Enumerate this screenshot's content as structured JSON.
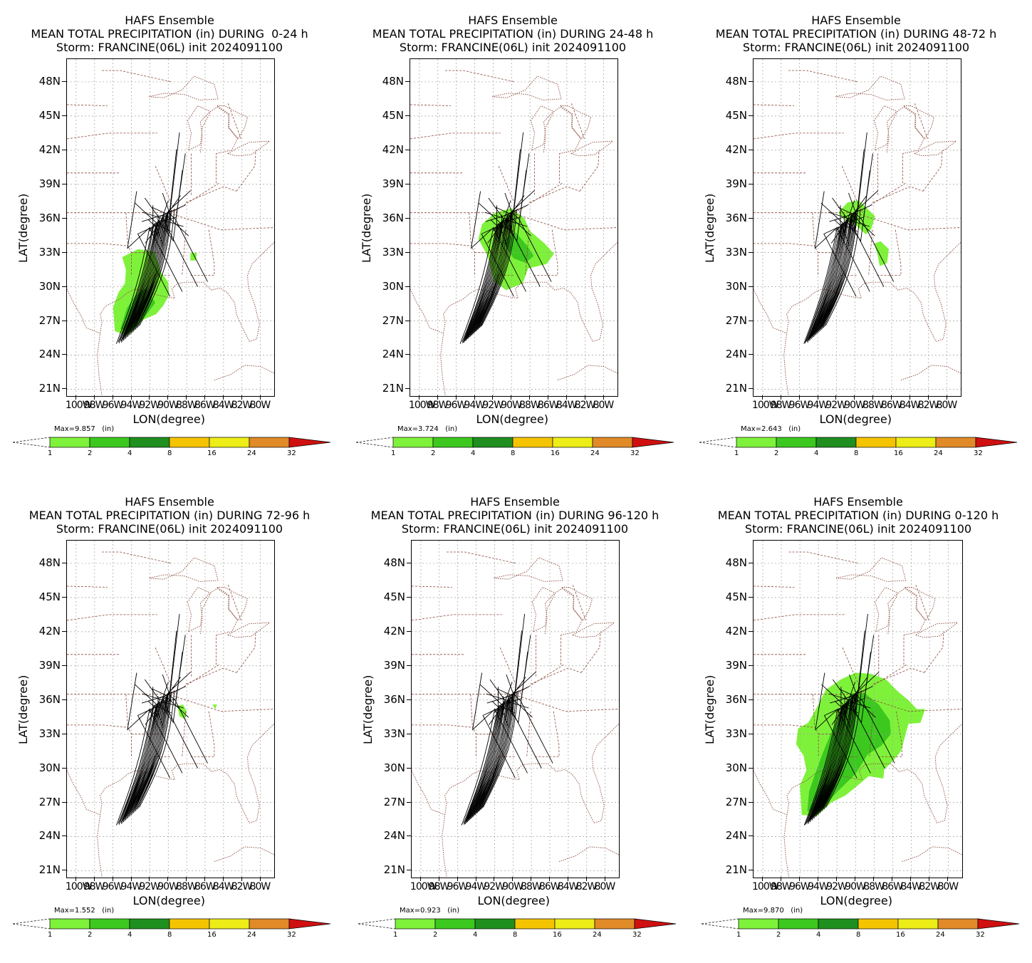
{
  "figure": {
    "colorbar": {
      "levels": [
        "1",
        "2",
        "4",
        "8",
        "16",
        "24",
        "32"
      ],
      "colors": [
        "#7ef23a",
        "#3cc81e",
        "#1f8f1f",
        "#f5c400",
        "#eded18",
        "#e08a28",
        "#d01010"
      ],
      "unit": "(in)"
    },
    "lat_ticks": [
      "48N",
      "45N",
      "42N",
      "39N",
      "36N",
      "33N",
      "30N",
      "27N",
      "24N",
      "21N"
    ],
    "lon_ticks": [
      "100W",
      "98W",
      "96W",
      "94W",
      "92W",
      "90W",
      "88W",
      "86W",
      "84W",
      "82W",
      "80W"
    ],
    "xlabel": "LON(degree)",
    "ylabel": "LAT(degree)",
    "panels": [
      {
        "title1": "HAFS Ensemble",
        "title2": "MEAN TOTAL PRECIPITATION (in) DURING  0-24 h",
        "title3": "Storm: FRANCINE(06L) init 2024091100",
        "max": "Max=9.857"
      },
      {
        "title1": "HAFS Ensemble",
        "title2": "MEAN TOTAL PRECIPITATION (in) DURING 24-48 h",
        "title3": "Storm: FRANCINE(06L) init 2024091100",
        "max": "Max=3.724"
      },
      {
        "title1": "HAFS Ensemble",
        "title2": "MEAN TOTAL PRECIPITATION (in) DURING 48-72 h",
        "title3": "Storm: FRANCINE(06L) init 2024091100",
        "max": "Max=2.643"
      },
      {
        "title1": "HAFS Ensemble",
        "title2": "MEAN TOTAL PRECIPITATION (in) DURING 72-96 h",
        "title3": "Storm: FRANCINE(06L) init 2024091100",
        "max": "Max=1.552"
      },
      {
        "title1": "HAFS Ensemble",
        "title2": "MEAN TOTAL PRECIPITATION (in) DURING 96-120 h",
        "title3": "Storm: FRANCINE(06L) init 2024091100",
        "max": "Max=0.923"
      },
      {
        "title1": "HAFS Ensemble",
        "title2": "MEAN TOTAL PRECIPITATION (in) DURING 0-120 h",
        "title3": "Storm: FRANCINE(06L) init 2024091100",
        "max": "Max=9.870"
      }
    ]
  }
}
